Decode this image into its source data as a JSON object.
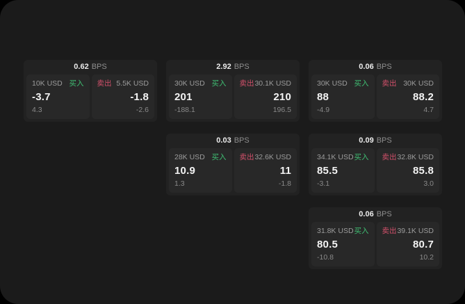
{
  "page": {
    "background_color": "#1b1b1b",
    "outside_color": "#000000",
    "card_background": "#222222",
    "tile_background": "#282828"
  },
  "colors": {
    "buy_green": "#3fbf73",
    "sell_red": "#d1506a",
    "price_white": "#f3f3f3",
    "label_gray": "#9c9c9c",
    "sub_gray": "#8a8a8a"
  },
  "labels": {
    "bps_unit": "BPS",
    "buy": "买入",
    "sell": "卖出"
  },
  "cards": [
    {
      "bps": "0.62",
      "buy": {
        "amount": "10K USD",
        "value": "-3.7",
        "sub": "4.3"
      },
      "sell": {
        "amount": "5.5K USD",
        "value": "-1.8",
        "sub": "-2.6"
      }
    },
    {
      "bps": "2.92",
      "buy": {
        "amount": "30K USD",
        "value": "201",
        "sub": "-188.1"
      },
      "sell": {
        "amount": "30.1K USD",
        "value": "210",
        "sub": "196.5"
      }
    },
    {
      "bps": "0.06",
      "buy": {
        "amount": "30K USD",
        "value": "88",
        "sub": "-4.9"
      },
      "sell": {
        "amount": "30K USD",
        "value": "88.2",
        "sub": "4.7"
      }
    },
    {
      "bps": "0.03",
      "buy": {
        "amount": "28K USD",
        "value": "10.9",
        "sub": "1.3"
      },
      "sell": {
        "amount": "32.6K USD",
        "value": "11",
        "sub": "-1.8"
      }
    },
    {
      "bps": "0.09",
      "buy": {
        "amount": "34.1K USD",
        "value": "85.5",
        "sub": "-3.1"
      },
      "sell": {
        "amount": "32.8K USD",
        "value": "85.8",
        "sub": "3.0"
      }
    },
    {
      "bps": "0.06",
      "buy": {
        "amount": "31.8K USD",
        "value": "80.5",
        "sub": "-10.8"
      },
      "sell": {
        "amount": "39.1K USD",
        "value": "80.7",
        "sub": "10.2"
      }
    }
  ]
}
